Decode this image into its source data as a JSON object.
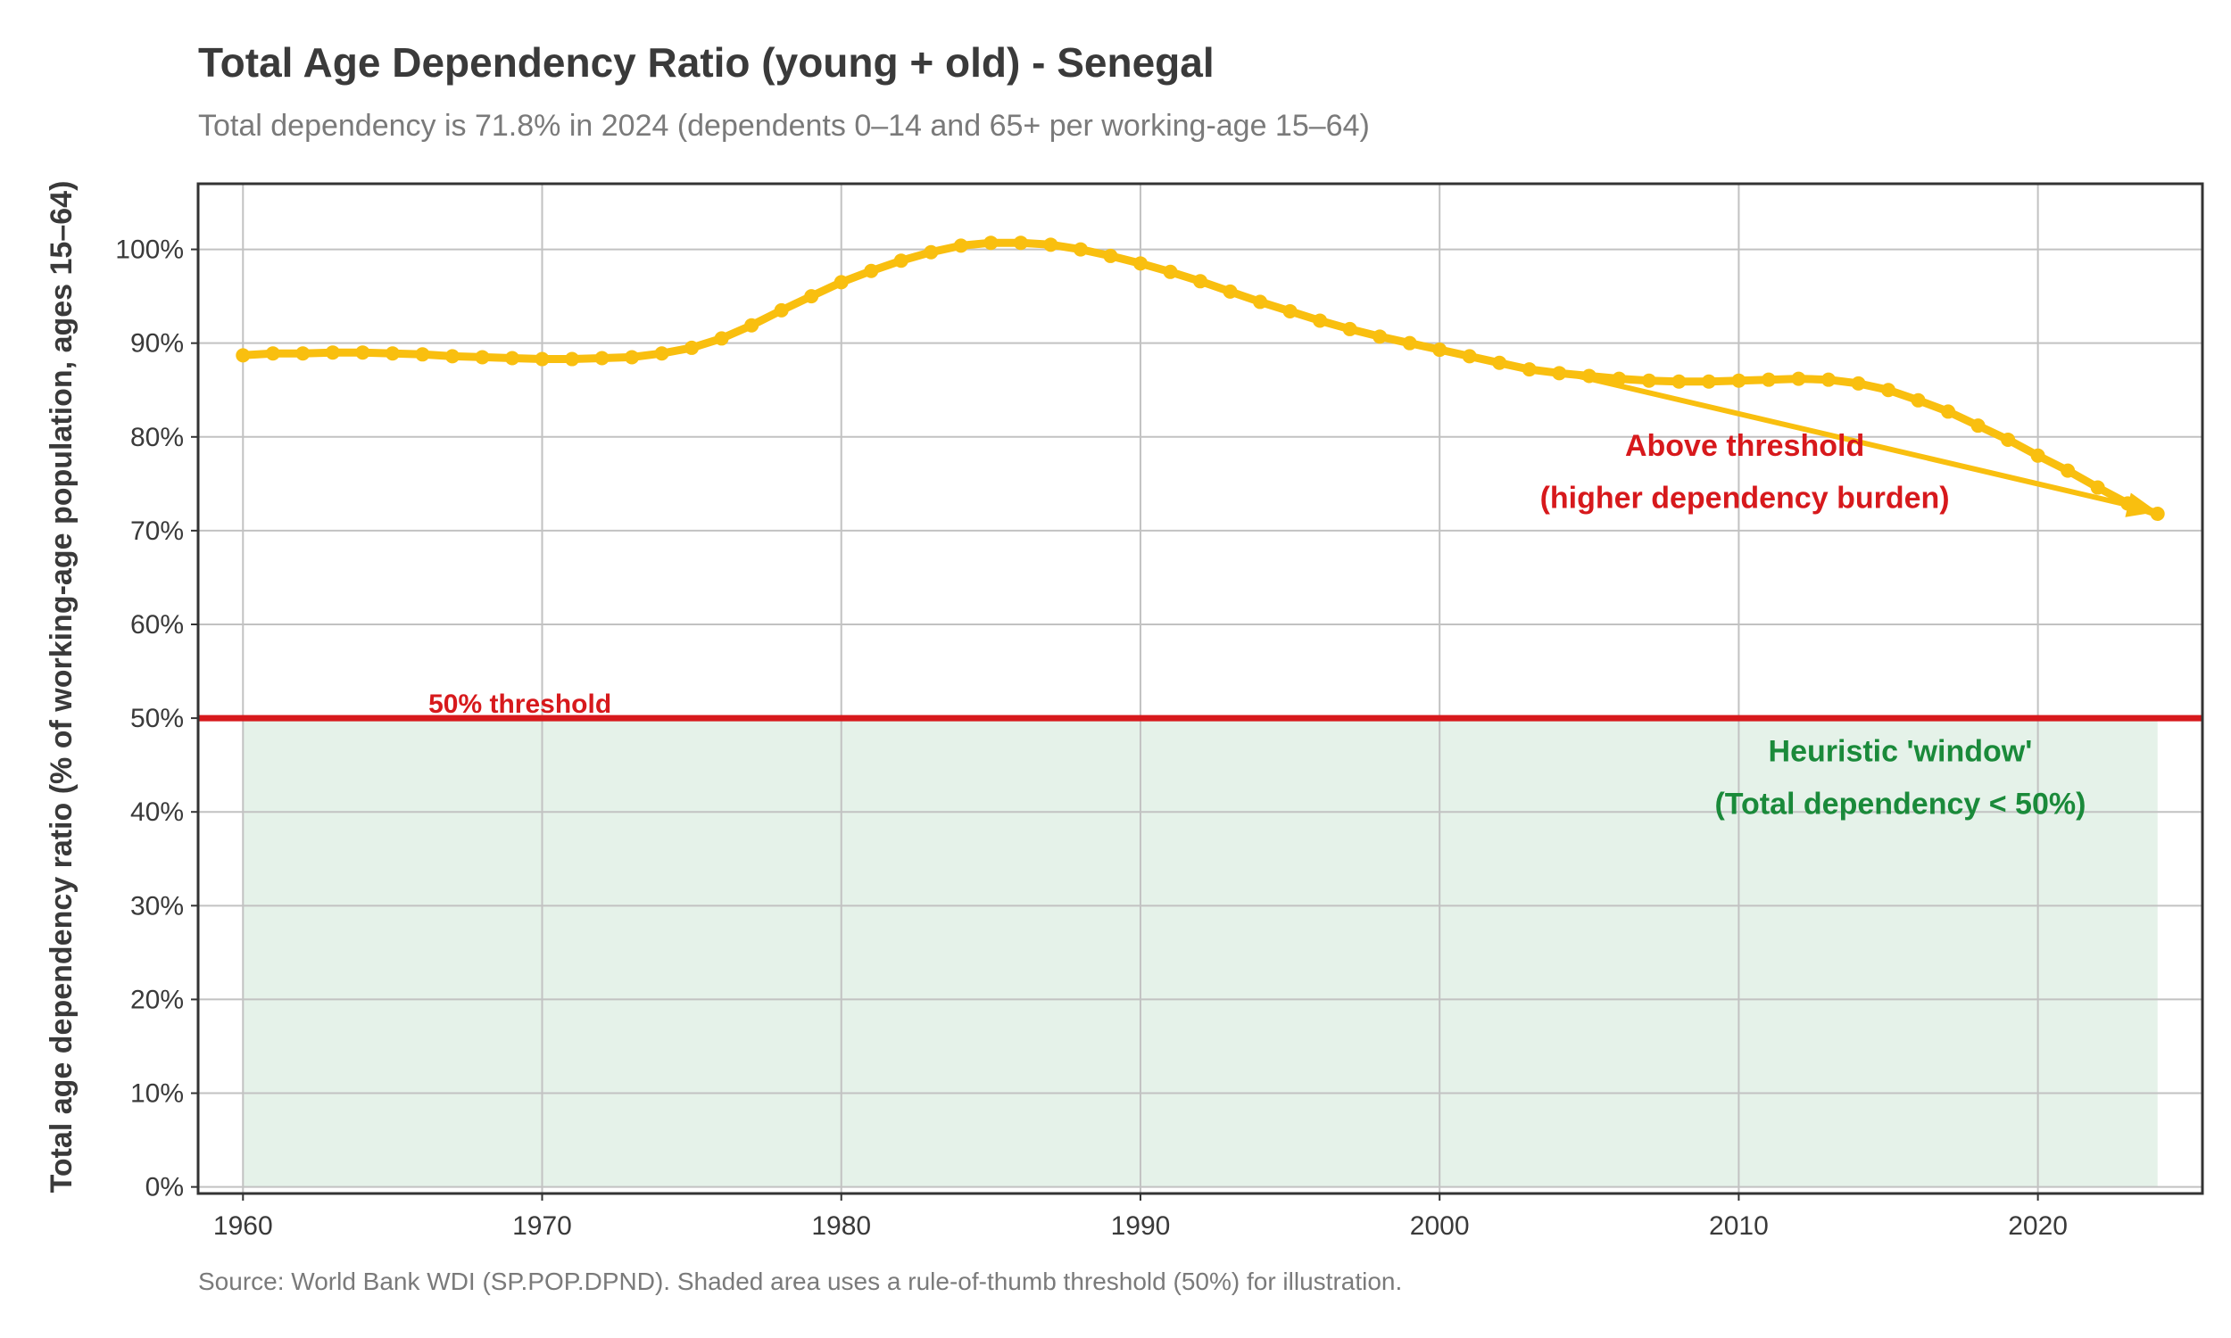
{
  "chart_data": {
    "type": "line",
    "title": "Total Age Dependency Ratio (young + old) - Senegal",
    "subtitle": "Total dependency is 71.8% in 2024 (dependents 0–14 and 65+ per working-age 15–64)",
    "xlabel": "",
    "ylabel": "Total age dependency ratio (% of working-age population, ages 15–64)",
    "caption": "Source: World Bank WDI (SP.POP.DPND). Shaded area uses a rule-of-thumb threshold (50%) for illustration.",
    "xlim": [
      1958.5,
      2025.5
    ],
    "ylim": [
      -0.7,
      107
    ],
    "x_ticks": [
      1960,
      1970,
      1980,
      1990,
      2000,
      2010,
      2020
    ],
    "x_tick_labels": [
      "1960",
      "1970",
      "1980",
      "1990",
      "2000",
      "2010",
      "2020"
    ],
    "y_ticks": [
      0,
      10,
      20,
      30,
      40,
      50,
      60,
      70,
      80,
      90,
      100
    ],
    "y_tick_labels": [
      "0%",
      "10%",
      "20%",
      "30%",
      "40%",
      "50%",
      "60%",
      "70%",
      "80%",
      "90%",
      "100%"
    ],
    "grid": true,
    "x": [
      1960,
      1961,
      1962,
      1963,
      1964,
      1965,
      1966,
      1967,
      1968,
      1969,
      1970,
      1971,
      1972,
      1973,
      1974,
      1975,
      1976,
      1977,
      1978,
      1979,
      1980,
      1981,
      1982,
      1983,
      1984,
      1985,
      1986,
      1987,
      1988,
      1989,
      1990,
      1991,
      1992,
      1993,
      1994,
      1995,
      1996,
      1997,
      1998,
      1999,
      2000,
      2001,
      2002,
      2003,
      2004,
      2005,
      2006,
      2007,
      2008,
      2009,
      2010,
      2011,
      2012,
      2013,
      2014,
      2015,
      2016,
      2017,
      2018,
      2019,
      2020,
      2021,
      2022,
      2023,
      2024
    ],
    "series": [
      {
        "values": [
          88.7,
          88.9,
          88.9,
          89.0,
          89.0,
          88.9,
          88.8,
          88.6,
          88.5,
          88.4,
          88.3,
          88.3,
          88.4,
          88.5,
          88.9,
          89.5,
          90.5,
          91.9,
          93.5,
          95.0,
          96.5,
          97.7,
          98.8,
          99.7,
          100.4,
          100.7,
          100.7,
          100.5,
          100.0,
          99.3,
          98.5,
          97.6,
          96.6,
          95.5,
          94.4,
          93.4,
          92.4,
          91.5,
          90.7,
          90.0,
          89.3,
          88.6,
          87.9,
          87.2,
          86.8,
          86.5,
          86.2,
          86.0,
          85.9,
          85.9,
          86.0,
          86.1,
          86.2,
          86.1,
          85.7,
          85.0,
          83.9,
          82.7,
          81.2,
          79.7,
          78.0,
          76.4,
          74.6,
          72.9,
          71.8
        ],
        "color": "#f9bf0f"
      }
    ],
    "threshold": {
      "value": 50,
      "label": "50% threshold",
      "color": "#d7191c"
    },
    "shaded_window": {
      "from": 0,
      "to": 50,
      "color": "#e5f2e9",
      "label_line1": "Heuristic 'window'",
      "label_line2": "(Total dependency < 50%)",
      "label_color": "#1a8a3a"
    },
    "annotation": {
      "label_line1": "Above threshold",
      "label_line2": "(higher dependency burden)",
      "color": "#d7191c",
      "arrow_from": [
        2004.2,
        86.8
      ],
      "arrow_to": [
        2024,
        72.0
      ]
    }
  }
}
